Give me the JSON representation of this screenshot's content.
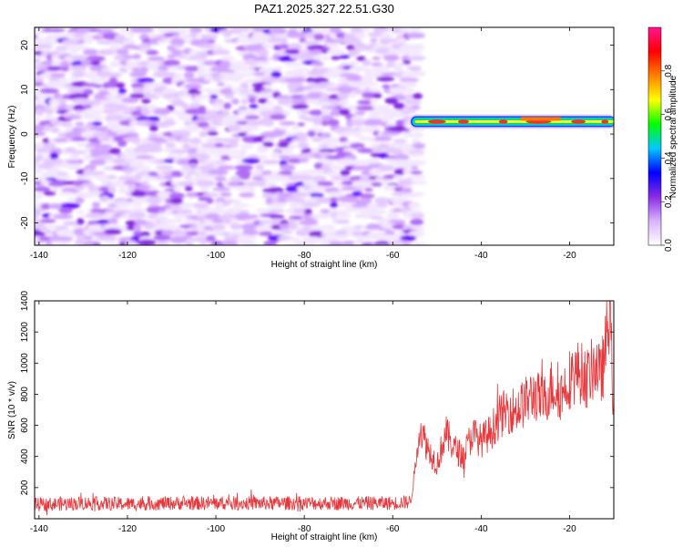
{
  "title": "PAZ1.2025.327.22.51.G30",
  "chart_data": [
    {
      "type": "heatmap",
      "title": "PAZ1.2025.327.22.51.G30",
      "xlabel": "Height of straight line (km)",
      "ylabel": "Frequency (Hz)",
      "xlim": [
        -141,
        -10
      ],
      "ylim": [
        -25,
        24
      ],
      "xticks": [
        -140,
        -120,
        -100,
        -80,
        -60,
        -40,
        -20
      ],
      "yticks": [
        -20,
        -10,
        0,
        10,
        20
      ],
      "colorbar": {
        "label": "Normalized spectral amplitude",
        "range": [
          0,
          1
        ],
        "ticks": [
          "0.0",
          "0.2",
          "0.4",
          "0.6",
          "0.8"
        ],
        "colors": [
          "#ffffff",
          "#d9b3ff",
          "#8a2be2",
          "#0000ff",
          "#00c8ff",
          "#00ff00",
          "#ffff00",
          "#ff8000",
          "#ff0000",
          "#ff1493"
        ]
      },
      "signal_band": {
        "x_start": -55,
        "x_end": -10,
        "frequency": 3,
        "peak_amplitude": 0.9
      },
      "noise_region": {
        "x_start": -141,
        "x_end": -55,
        "amplitude": 0.4
      }
    },
    {
      "type": "line",
      "xlabel": "Height of straight line (km)",
      "ylabel": "SNR (10 * v/v)",
      "xlim": [
        -141,
        -10
      ],
      "ylim": [
        0,
        1400
      ],
      "xticks": [
        -140,
        -120,
        -100,
        -80,
        -60,
        -40,
        -20
      ],
      "yticks": [
        200,
        400,
        600,
        800,
        1000,
        1200,
        1400
      ],
      "series": [
        {
          "name": "SNR",
          "color": "#e8363a",
          "x": [
            -141,
            -130,
            -120,
            -110,
            -100,
            -90,
            -80,
            -70,
            -60,
            -56,
            -55,
            -54,
            -52,
            -50,
            -48,
            -46,
            -44,
            -42,
            -40,
            -38,
            -36,
            -34,
            -32,
            -30,
            -28,
            -26,
            -24,
            -22,
            -20,
            -18,
            -16,
            -14,
            -13,
            -12,
            -11,
            -10
          ],
          "y": [
            90,
            100,
            95,
            100,
            100,
            100,
            100,
            100,
            100,
            110,
            300,
            600,
            450,
            350,
            550,
            450,
            400,
            550,
            500,
            550,
            650,
            700,
            700,
            750,
            800,
            750,
            850,
            800,
            900,
            950,
            900,
            1000,
            900,
            1050,
            1380,
            700
          ]
        }
      ]
    }
  ]
}
